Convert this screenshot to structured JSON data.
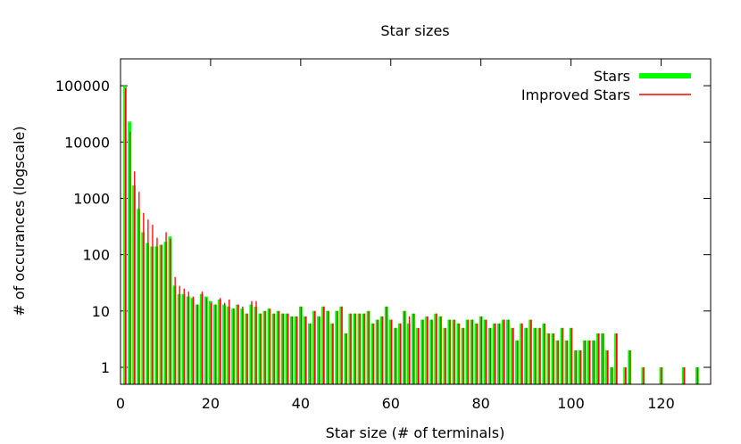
{
  "chart_data": {
    "type": "bar",
    "title": "Star sizes",
    "xlabel": "Star size (# of terminals)",
    "ylabel": "# of occurances (logscale)",
    "xlim": [
      0,
      131
    ],
    "ylim": [
      0.5,
      300000
    ],
    "y_scale": "log",
    "x_ticks": [
      0,
      20,
      40,
      60,
      80,
      100,
      120
    ],
    "x_tick_labels": [
      "0",
      "20",
      "40",
      "60",
      "80",
      "100",
      "120"
    ],
    "y_ticks": [
      1,
      10,
      100,
      1000,
      10000,
      100000
    ],
    "y_tick_labels": [
      "1",
      "10",
      "100",
      "1000",
      "10000",
      "100000"
    ],
    "legend_position": "top-right",
    "series": [
      {
        "name": "Stars",
        "color": "#00ff00",
        "x": [
          1,
          2,
          3,
          4,
          5,
          6,
          7,
          8,
          9,
          10,
          11,
          12,
          13,
          14,
          15,
          16,
          17,
          18,
          19,
          20,
          21,
          22,
          23,
          24,
          25,
          26,
          27,
          28,
          29,
          30,
          31,
          32,
          33,
          34,
          35,
          36,
          37,
          38,
          39,
          40,
          41,
          42,
          43,
          44,
          45,
          46,
          47,
          48,
          49,
          50,
          51,
          52,
          53,
          54,
          55,
          56,
          57,
          58,
          59,
          60,
          61,
          62,
          63,
          64,
          65,
          66,
          67,
          68,
          69,
          70,
          71,
          72,
          73,
          74,
          75,
          76,
          77,
          78,
          79,
          80,
          81,
          82,
          83,
          84,
          85,
          86,
          87,
          88,
          89,
          90,
          91,
          92,
          93,
          94,
          95,
          96,
          97,
          98,
          99,
          100,
          101,
          102,
          103,
          104,
          105,
          106,
          107,
          108,
          109,
          110,
          112,
          113,
          116,
          120,
          125,
          128
        ],
        "values": [
          100000,
          23000,
          1700,
          650,
          250,
          160,
          140,
          140,
          150,
          170,
          210,
          28,
          20,
          20,
          18,
          17,
          13,
          20,
          18,
          15,
          13,
          16,
          13,
          12,
          11,
          13,
          11,
          9,
          13,
          12,
          9,
          10,
          11,
          9,
          10,
          9,
          9,
          8,
          8,
          12,
          8,
          6,
          10,
          8,
          12,
          10,
          6,
          10,
          12,
          4,
          9,
          9,
          9,
          9,
          10,
          6,
          7,
          8,
          12,
          7,
          5,
          6,
          10,
          6,
          9,
          5,
          7,
          8,
          7,
          9,
          8,
          5,
          7,
          7,
          6,
          5,
          7,
          7,
          6,
          8,
          7,
          5,
          6,
          6,
          7,
          7,
          5,
          3,
          6,
          5,
          7,
          5,
          5,
          6,
          4,
          4,
          3,
          5,
          3,
          5,
          2,
          2,
          3,
          3,
          3,
          4,
          4,
          2,
          1,
          4,
          1,
          2,
          1,
          1,
          1,
          1
        ]
      },
      {
        "name": "Improved Stars",
        "color": "#ff0000",
        "x": [
          1,
          2,
          3,
          4,
          5,
          6,
          7,
          8,
          9,
          10,
          11,
          12,
          13,
          14,
          15,
          16,
          17,
          18,
          19,
          20,
          21,
          22,
          23,
          24,
          25,
          26,
          27,
          28,
          29,
          30,
          31,
          32,
          33,
          34,
          35,
          36,
          37,
          38,
          39,
          40,
          41,
          42,
          43,
          44,
          45,
          46,
          47,
          48,
          49,
          50,
          51,
          52,
          53,
          54,
          55,
          56,
          57,
          58,
          59,
          60,
          61,
          62,
          63,
          64,
          65,
          66,
          67,
          68,
          69,
          70,
          71,
          72,
          73,
          74,
          75,
          76,
          77,
          78,
          79,
          80,
          81,
          82,
          83,
          84,
          85,
          86,
          87,
          88,
          89,
          90,
          91,
          92,
          93,
          94,
          95,
          96,
          97,
          98,
          99,
          100,
          101,
          102,
          103,
          104,
          105,
          106,
          107,
          108,
          109,
          110,
          112,
          113,
          116,
          120,
          125,
          128
        ],
        "values": [
          90000,
          15000,
          3000,
          1300,
          550,
          420,
          340,
          200,
          150,
          250,
          190,
          40,
          28,
          25,
          22,
          18,
          13,
          22,
          17,
          14,
          13,
          17,
          14,
          16,
          11,
          13,
          12,
          9,
          15,
          15,
          9,
          10,
          11,
          9,
          10,
          9,
          9,
          8,
          8,
          12,
          8,
          6,
          10,
          8,
          12,
          10,
          6,
          10,
          12,
          4,
          9,
          9,
          9,
          9,
          10,
          6,
          7,
          8,
          12,
          7,
          5,
          6,
          10,
          8,
          9,
          5,
          7,
          8,
          7,
          9,
          8,
          5,
          7,
          7,
          6,
          5,
          7,
          7,
          6,
          8,
          7,
          5,
          6,
          6,
          7,
          7,
          5,
          3,
          6,
          5,
          7,
          5,
          5,
          6,
          4,
          4,
          3,
          5,
          3,
          5,
          2,
          2,
          3,
          3,
          3,
          4,
          4,
          2,
          1,
          4,
          1,
          2,
          1,
          1,
          1,
          1
        ]
      }
    ]
  }
}
